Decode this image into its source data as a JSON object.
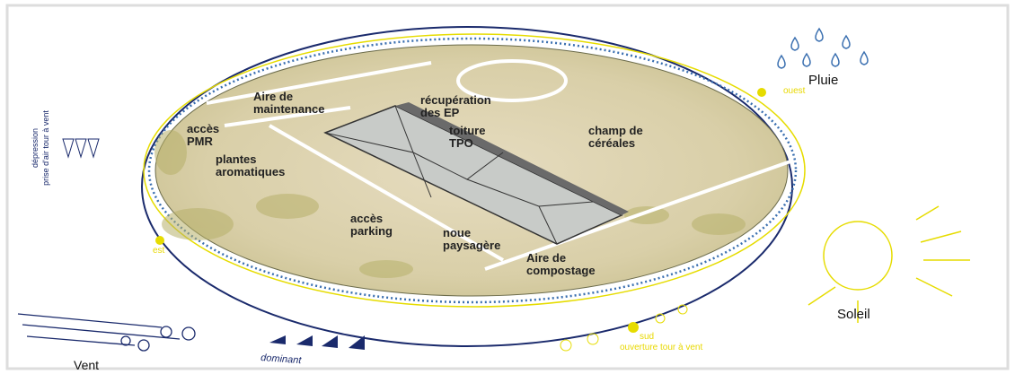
{
  "labels": [
    {
      "lines": [
        "Aire de",
        "maintenance"
      ]
    },
    {
      "lines": [
        "récupération",
        "des EP"
      ]
    },
    {
      "lines": [
        "accès",
        "PMR"
      ]
    },
    {
      "lines": [
        "toiture",
        "TPO"
      ]
    },
    {
      "lines": [
        "champ de",
        "céréales"
      ]
    },
    {
      "lines": [
        "plantes",
        "aromatiques"
      ]
    },
    {
      "lines": [
        "accès",
        "parking"
      ]
    },
    {
      "lines": [
        "noue",
        "paysagère"
      ]
    },
    {
      "lines": [
        "Aire de",
        "compostage"
      ]
    }
  ],
  "climate": {
    "rain": "Pluie",
    "west": "ouest",
    "east": "est",
    "sun": "Soleil",
    "south": "sud",
    "wind_tower_opening": "ouverture tour à vent",
    "dominant": "dominant",
    "wind": "Vent",
    "depression": "dépression",
    "air_intake": "prise d'air tour à vent"
  }
}
